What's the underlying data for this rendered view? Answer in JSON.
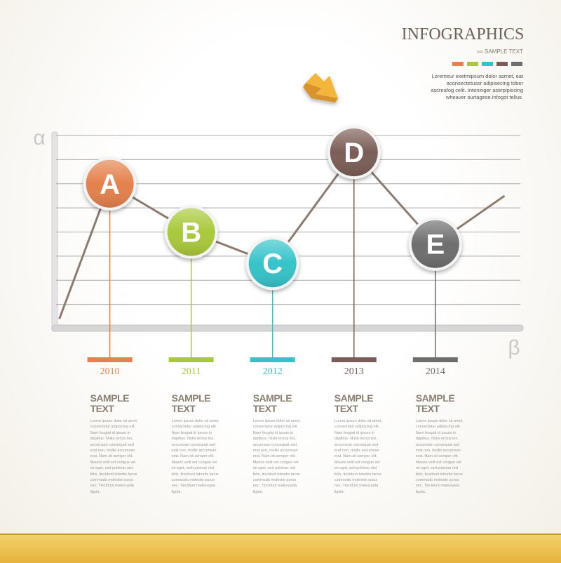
{
  "header": {
    "title": "INFOGRAPHICS",
    "subtitle": "»» SAMPLE TEXT",
    "text": [
      "Loremeur exetmipsum dolor asmet, eat",
      "aconsectetussr adipisecing tober",
      "ascreafog celit. Inteninger aserpipiscing",
      "wheaver ourtagese infogot tellus."
    ]
  },
  "chart_data": {
    "type": "line",
    "y_label": "α",
    "x_label": "β",
    "x": [
      2009.38,
      2010,
      2011,
      2012,
      2013,
      2014,
      2014.85
    ],
    "xlim": [
      2009.34,
      2015.07
    ],
    "xticks": [
      2010,
      2011,
      2012,
      2013,
      2014
    ],
    "ylim": [
      0,
      8
    ],
    "grid": true,
    "series": [
      {
        "color": "#8c7b6e",
        "values": [
          0.4,
          6,
          4,
          2.7,
          7.3,
          3.5,
          5.5
        ],
        "point_labels": [
          null,
          "A",
          "B",
          "C",
          "D",
          "E",
          null
        ],
        "point_colors": [
          null,
          "#e4814c",
          "#a9c93b",
          "#35c3c9",
          "#7b5d57",
          "#6e6e6e",
          null
        ]
      }
    ]
  },
  "columns": [
    {
      "heading": "SAMPLE TEXT",
      "body": "Lorem ipsum dolor sit amet, consectetur adipiscing elit. Nam feugiat id ipsum in dapibus. Nulla lectus leo, accumsan consequat sed erat non, mollis accumsan erat. Nam sit semper elit. Mauris velit est congue vel mi eget, sed pulvinar nisl felis, tincidunt lobortis lacus commodo molestie purus nec. Tincidunt malesuada ligula."
    },
    {
      "heading": "SAMPLE TEXT",
      "body": "Lorem ipsum dolor sit amet, consectetur adipiscing elit. Nam feugiat id ipsum in dapibus. Nulla lectus leo, accumsan consequat sed erat non, mollis accumsan erat. Nam sit semper elit. Mauris velit est congue vel mi eget, sed pulvinar nisl felis, tincidunt lobortis lacus commodo molestie purus nec. Tincidunt malesuada ligula."
    },
    {
      "heading": "SAMPLE TEXT",
      "body": "Lorem ipsum dolor sit amet, consectetur adipiscing elit. Nam feugiat id ipsum in dapibus. Nulla lectus leo, accumsan consequat sed erat non, mollis accumsan erat. Nam sit semper elit. Mauris velit est congue vel mi eget, sed pulvinar nisl felis, tincidunt lobortis lacus commodo molestie purus nec. Tincidunt malesuada ligula."
    },
    {
      "heading": "SAMPLE TEXT",
      "body": "Lorem ipsum dolor sit amet, consectetur adipiscing elit. Nam feugiat id ipsum in dapibus. Nulla lectus leo, accumsan consequat sed erat non, mollis accumsan erat. Nam sit semper elit. Mauris velit est congue vel mi eget, sed pulvinar nisl felis, tincidunt lobortis lacus commodo molestie purus nec. Tincidunt malesuada ligula."
    },
    {
      "heading": "SAMPLE TEXT",
      "body": "Lorem ipsum dolor sit amet, consectetur adipiscing elit. Nam feugiat id ipsum in dapibus. Nulla lectus leo, accumsan consequat sed erat non, mollis accumsan erat. Nam sit semper elit. Mauris velit est congue vel mi eget, sed pulvinar nisl felis, tincidunt lobortis lacus commodo molestie purus nec. Tincidunt malesuada ligula."
    }
  ]
}
